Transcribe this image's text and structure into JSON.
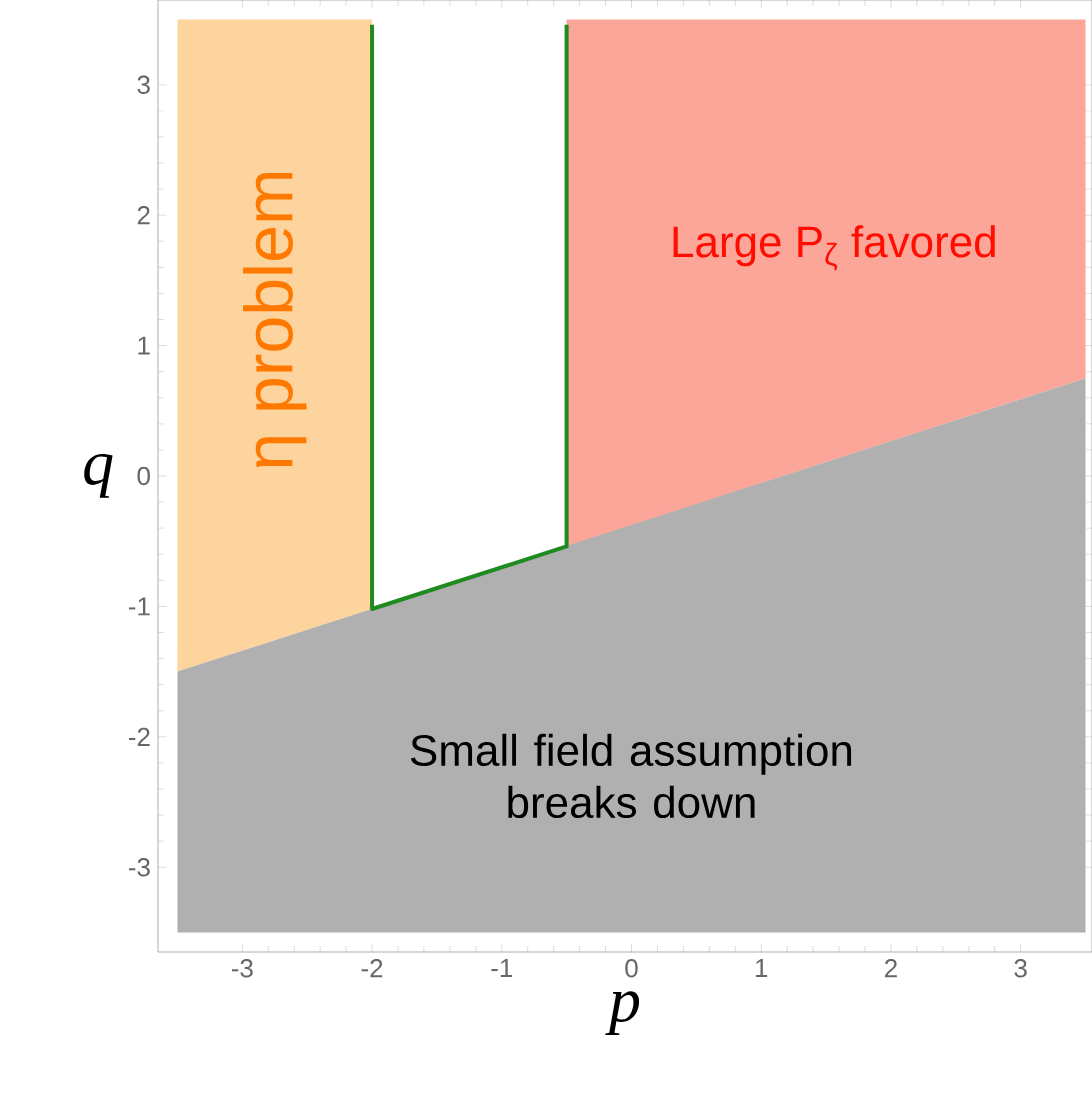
{
  "chart_data": {
    "type": "area",
    "xlabel": "p",
    "ylabel": "q",
    "xlim": [
      -3.65,
      3.55
    ],
    "ylim": [
      -3.65,
      3.65
    ],
    "xticks": [
      -3,
      -2,
      -1,
      0,
      1,
      2,
      3
    ],
    "yticks": [
      -3,
      -2,
      -1,
      0,
      1,
      2,
      3
    ],
    "series": [
      {
        "color": "#fdd49e",
        "x": [
          -3.5,
          -2,
          -2,
          -3.5
        ],
        "values": [
          3.5,
          3.5,
          -1.02,
          -1.5
        ]
      },
      {
        "color": "#fca69a",
        "x": [
          -0.5,
          3.5,
          3.5,
          -0.5
        ],
        "values": [
          3.5,
          3.5,
          0.75,
          -0.54
        ]
      },
      {
        "color": "#b0b0b0",
        "x": [
          -3.5,
          3.5,
          3.5,
          -3.5
        ],
        "values": [
          -1.5,
          0.75,
          -3.5,
          -3.5
        ]
      },
      {
        "type": "line",
        "color": "#1f8a1f",
        "x": [
          -2,
          -2,
          -0.5,
          -0.5
        ],
        "values": [
          3.46,
          -1.02,
          -0.54,
          3.46
        ]
      }
    ],
    "annotations": [
      "η problem",
      "Large P$_{ζ}$ favored",
      "Small field assumption breaks down"
    ],
    "grid": false,
    "marker": "none",
    "line_style": "solid"
  }
}
